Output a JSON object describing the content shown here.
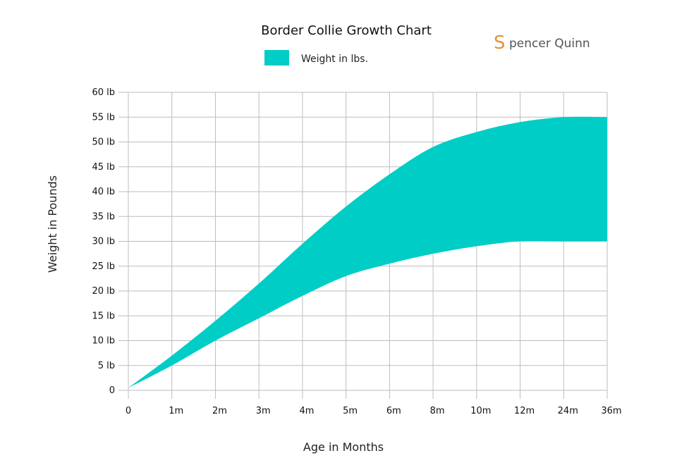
{
  "brand": {
    "initial": "S",
    "text": "pencer Quinn",
    "color": "#e8913a",
    "text_color": "#555555"
  },
  "colors": {
    "band": "#00cdc6",
    "grid": "#bdbdbd"
  },
  "chart_data": {
    "type": "area",
    "title": "Border Collie Growth Chart",
    "xlabel": "Age in Months",
    "ylabel": "Weight in Pounds",
    "legend": {
      "position": "top",
      "entries": [
        "Weight in lbs."
      ]
    },
    "categories": [
      "0",
      "1m",
      "2m",
      "3m",
      "4m",
      "5m",
      "6m",
      "8m",
      "10m",
      "12m",
      "24m",
      "36m"
    ],
    "y_ticks": [
      "0",
      "5 lb",
      "10 lb",
      "15 lb",
      "20 lb",
      "25 lb",
      "30 lb",
      "35 lb",
      "40 lb",
      "45 lb",
      "50 lb",
      "55 lb",
      "60 lb"
    ],
    "ylim": [
      0,
      60
    ],
    "grid": true,
    "series": [
      {
        "name": "Weight in lbs.",
        "low": [
          0.5,
          5,
          10,
          14.5,
          19,
          23,
          25.5,
          27.5,
          29,
          30,
          30,
          30
        ],
        "high": [
          0.5,
          7,
          14,
          21.5,
          29.5,
          37,
          43.5,
          49,
          52,
          54,
          55,
          55
        ]
      }
    ]
  }
}
